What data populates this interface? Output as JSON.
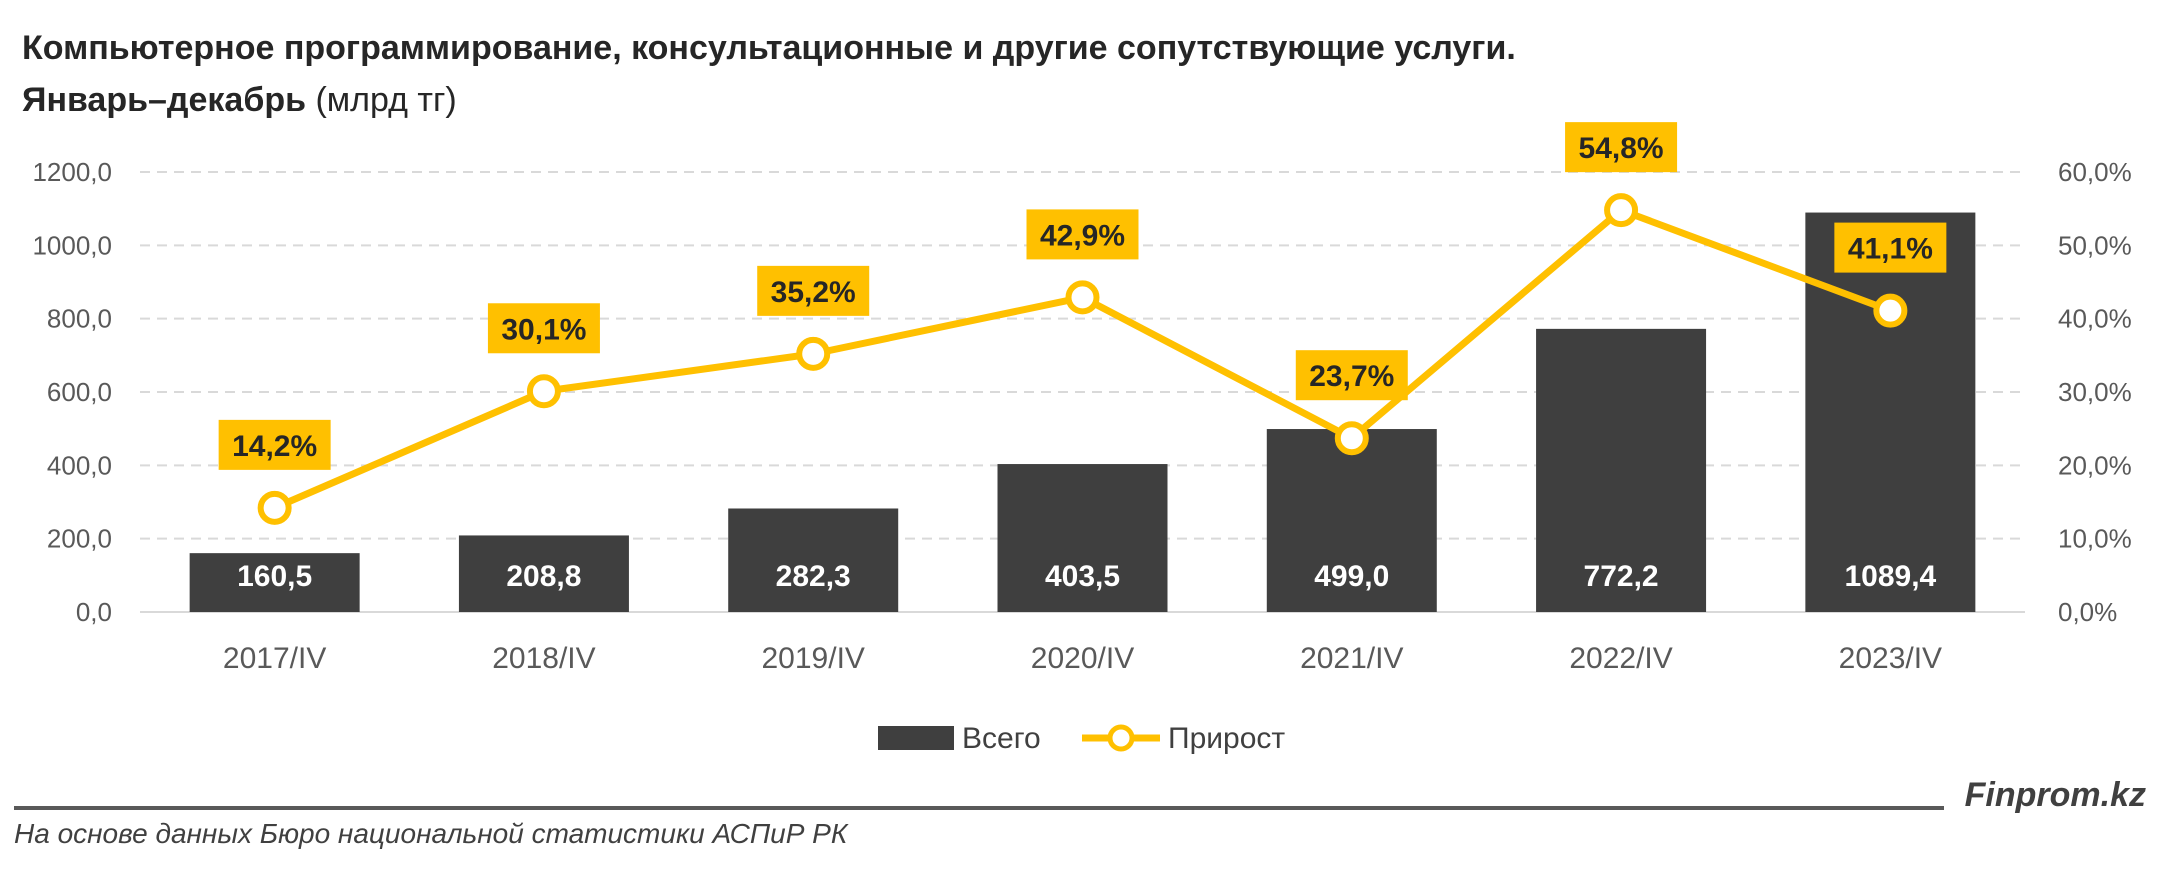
{
  "title": {
    "line1": "Компьютерное программирование, консультационные и другие сопутствующие услуги.",
    "line2_bold": "Январь–декабрь",
    "line2_unit": " (млрд тг)"
  },
  "footer": {
    "brand": "Finprom.kz",
    "source": "На основе данных Бюро национальной статистики АСПиР РК"
  },
  "colors": {
    "bar": "#3f3f3f",
    "line": "#ffc000",
    "grid": "#d9d9d9",
    "axis_text": "#595959"
  },
  "chart_data": {
    "type": "bar",
    "categories": [
      "2017/IV",
      "2018/IV",
      "2019/IV",
      "2020/IV",
      "2021/IV",
      "2022/IV",
      "2023/IV"
    ],
    "series": [
      {
        "name": "Всего",
        "type": "bar",
        "axis": "left",
        "values": [
          160.5,
          208.8,
          282.3,
          403.5,
          499.0,
          772.2,
          1089.4
        ],
        "labels": [
          "160,5",
          "208,8",
          "282,3",
          "403,5",
          "499,0",
          "772,2",
          "1089,4"
        ]
      },
      {
        "name": "Прирост",
        "type": "line",
        "axis": "right",
        "values": [
          14.2,
          30.1,
          35.2,
          42.9,
          23.7,
          54.8,
          41.1
        ],
        "labels": [
          "14,2%",
          "30,1%",
          "35,2%",
          "42,9%",
          "23,7%",
          "54,8%",
          "41,1%"
        ]
      }
    ],
    "y_left": {
      "ylim": [
        0,
        1200
      ],
      "ticks": [
        "0,0",
        "200,0",
        "400,0",
        "600,0",
        "800,0",
        "1000,0",
        "1200,0"
      ]
    },
    "y_right": {
      "ylim": [
        0,
        60
      ],
      "ticks": [
        "0,0%",
        "10,0%",
        "20,0%",
        "30,0%",
        "40,0%",
        "50,0%",
        "60,0%"
      ]
    },
    "grid": true,
    "legend_position": "bottom-center"
  }
}
